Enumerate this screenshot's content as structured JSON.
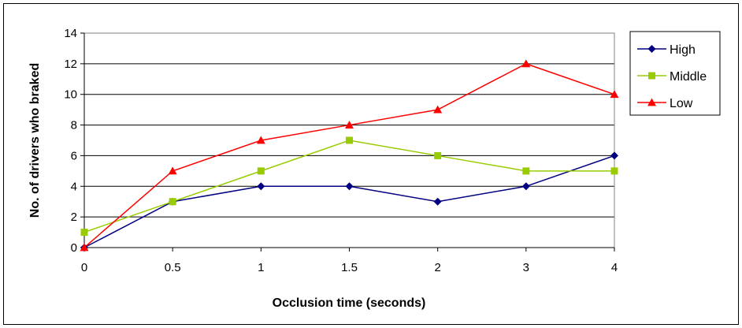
{
  "chart_data": {
    "type": "line",
    "title": "",
    "xlabel": "Occlusion time (seconds)",
    "ylabel": "No. of drivers who braked",
    "categories": [
      "0",
      "0.5",
      "1",
      "1.5",
      "2",
      "3",
      "4"
    ],
    "ylim": [
      0,
      14
    ],
    "yticks": [
      "0",
      "2",
      "4",
      "6",
      "8",
      "10",
      "12",
      "14"
    ],
    "grid": true,
    "legend_position": "right",
    "series": [
      {
        "name": "High",
        "values": [
          0,
          3,
          4,
          4,
          3,
          4,
          6
        ],
        "color": "#000080",
        "marker": "diamond"
      },
      {
        "name": "Middle",
        "values": [
          1,
          3,
          5,
          7,
          6,
          5,
          5
        ],
        "color": "#99CC00",
        "marker": "square"
      },
      {
        "name": "Low",
        "values": [
          0,
          5,
          7,
          8,
          9,
          12,
          10
        ],
        "color": "#FF0000",
        "marker": "triangle"
      }
    ]
  }
}
